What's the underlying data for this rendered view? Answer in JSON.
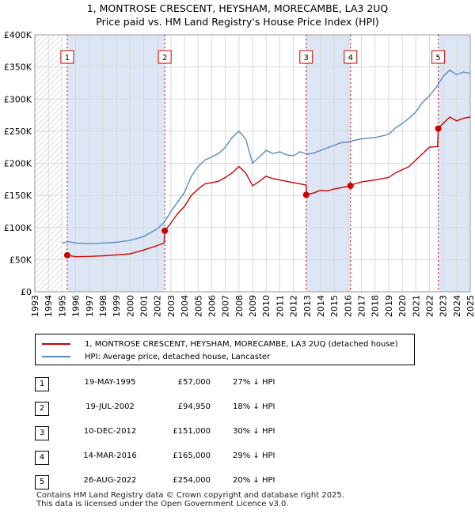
{
  "title_line1": "1, MONTROSE CRESCENT, HEYSHAM, MORECAMBE, LA3 2UQ",
  "title_line2": "Price paid vs. HM Land Registry's House Price Index (HPI)",
  "legend": {
    "property_label": "1, MONTROSE CRESCENT, HEYSHAM, MORECAMBE, LA3 2UQ (detached house)",
    "hpi_label": "HPI: Average price, detached house, Lancaster"
  },
  "colors": {
    "property": "#cc0000",
    "hpi": "#5a8ac6",
    "shade": "#dde6f5",
    "grid": "#d8d8d8"
  },
  "sales": [
    {
      "num": "1",
      "date": "19-MAY-1995",
      "price": "£57,000",
      "hpi": "27% ↓ HPI"
    },
    {
      "num": "2",
      "date": "19-JUL-2002",
      "price": "£94,950",
      "hpi": "18% ↓ HPI"
    },
    {
      "num": "3",
      "date": "10-DEC-2012",
      "price": "£151,000",
      "hpi": "30% ↓ HPI"
    },
    {
      "num": "4",
      "date": "14-MAR-2016",
      "price": "£165,000",
      "hpi": "29% ↓ HPI"
    },
    {
      "num": "5",
      "date": "26-AUG-2022",
      "price": "£254,000",
      "hpi": "20% ↓ HPI"
    }
  ],
  "footer": {
    "line1": "Contains HM Land Registry data © Crown copyright and database right 2025.",
    "line2": "This data is licensed under the Open Government Licence v3.0."
  },
  "chart_data": {
    "type": "line",
    "xlim": [
      1993,
      2025
    ],
    "ylim": [
      0,
      400000
    ],
    "y_ticks": [
      {
        "value": 0,
        "label": "£0"
      },
      {
        "value": 50000,
        "label": "£50K"
      },
      {
        "value": 100000,
        "label": "£100K"
      },
      {
        "value": 150000,
        "label": "£150K"
      },
      {
        "value": 200000,
        "label": "£200K"
      },
      {
        "value": 250000,
        "label": "£250K"
      },
      {
        "value": 300000,
        "label": "£300K"
      },
      {
        "value": 350000,
        "label": "£350K"
      },
      {
        "value": 400000,
        "label": "£400K"
      }
    ],
    "x_ticks": [
      "1993",
      "1994",
      "1995",
      "1996",
      "1997",
      "1998",
      "1999",
      "2000",
      "2001",
      "2002",
      "2003",
      "2004",
      "2005",
      "2006",
      "2007",
      "2008",
      "2009",
      "2010",
      "2011",
      "2012",
      "2013",
      "2014",
      "2015",
      "2016",
      "2017",
      "2018",
      "2019",
      "2020",
      "2021",
      "2022",
      "2023",
      "2024",
      "2025"
    ],
    "grid": true,
    "legend_position": "below",
    "shaded_bands": [
      {
        "from": 1995.38,
        "to": 2002.55
      },
      {
        "from": 2012.94,
        "to": 2016.2
      },
      {
        "from": 2022.65,
        "to": 2025
      }
    ],
    "sale_markers": [
      {
        "label": "1",
        "x": 1995.38,
        "y": 57000
      },
      {
        "label": "2",
        "x": 2002.55,
        "y": 94950
      },
      {
        "label": "3",
        "x": 2012.94,
        "y": 151000
      },
      {
        "label": "4",
        "x": 2016.2,
        "y": 165000
      },
      {
        "label": "5",
        "x": 2022.65,
        "y": 254000
      }
    ],
    "series": [
      {
        "name": "1, MONTROSE CRESCENT, HEYSHAM, MORECAMBE, LA3 2UQ (detached house)",
        "points": [
          [
            1995.38,
            57000
          ],
          [
            1996.0,
            54500
          ],
          [
            1997.0,
            55000
          ],
          [
            1998.0,
            56000
          ],
          [
            1999.0,
            57500
          ],
          [
            2000.0,
            59000
          ],
          [
            2001.0,
            65000
          ],
          [
            2002.0,
            72000
          ],
          [
            2002.5,
            76000
          ],
          [
            2002.55,
            94950
          ],
          [
            2003.0,
            107000
          ],
          [
            2003.5,
            122000
          ],
          [
            2004.0,
            133000
          ],
          [
            2004.5,
            150000
          ],
          [
            2005.0,
            160000
          ],
          [
            2005.5,
            168000
          ],
          [
            2006.0,
            170000
          ],
          [
            2006.5,
            172000
          ],
          [
            2007.0,
            178000
          ],
          [
            2007.5,
            185000
          ],
          [
            2008.0,
            195000
          ],
          [
            2008.5,
            185000
          ],
          [
            2009.0,
            165000
          ],
          [
            2009.5,
            172000
          ],
          [
            2010.0,
            180000
          ],
          [
            2010.5,
            176000
          ],
          [
            2011.0,
            174000
          ],
          [
            2011.5,
            172000
          ],
          [
            2012.0,
            170000
          ],
          [
            2012.5,
            168000
          ],
          [
            2012.94,
            166000
          ],
          [
            2012.95,
            151000
          ],
          [
            2013.5,
            154000
          ],
          [
            2014.0,
            158000
          ],
          [
            2014.5,
            157000
          ],
          [
            2015.0,
            160000
          ],
          [
            2015.5,
            162000
          ],
          [
            2016.2,
            165000
          ],
          [
            2016.5,
            168000
          ],
          [
            2017.0,
            171000
          ],
          [
            2018.0,
            174000
          ],
          [
            2019.0,
            178000
          ],
          [
            2019.5,
            185000
          ],
          [
            2020.0,
            190000
          ],
          [
            2020.5,
            195000
          ],
          [
            2021.0,
            205000
          ],
          [
            2021.5,
            215000
          ],
          [
            2022.0,
            225000
          ],
          [
            2022.6,
            226000
          ],
          [
            2022.65,
            254000
          ],
          [
            2023.0,
            262000
          ],
          [
            2023.5,
            272000
          ],
          [
            2024.0,
            266000
          ],
          [
            2024.5,
            270000
          ],
          [
            2025.0,
            272000
          ]
        ]
      },
      {
        "name": "HPI: Average price, detached house, Lancaster",
        "points": [
          [
            1995.0,
            76000
          ],
          [
            1995.5,
            78000
          ],
          [
            1996.0,
            76000
          ],
          [
            1997.0,
            75000
          ],
          [
            1998.0,
            76000
          ],
          [
            1999.0,
            77000
          ],
          [
            2000.0,
            80000
          ],
          [
            2001.0,
            86000
          ],
          [
            2002.0,
            98000
          ],
          [
            2002.5,
            108000
          ],
          [
            2003.0,
            125000
          ],
          [
            2003.5,
            140000
          ],
          [
            2004.0,
            155000
          ],
          [
            2004.5,
            180000
          ],
          [
            2005.0,
            195000
          ],
          [
            2005.5,
            205000
          ],
          [
            2006.0,
            210000
          ],
          [
            2006.5,
            215000
          ],
          [
            2007.0,
            225000
          ],
          [
            2007.5,
            240000
          ],
          [
            2008.0,
            250000
          ],
          [
            2008.5,
            238000
          ],
          [
            2009.0,
            200000
          ],
          [
            2009.5,
            210000
          ],
          [
            2010.0,
            220000
          ],
          [
            2010.5,
            215000
          ],
          [
            2011.0,
            218000
          ],
          [
            2011.5,
            213000
          ],
          [
            2012.0,
            212000
          ],
          [
            2012.5,
            218000
          ],
          [
            2013.0,
            214000
          ],
          [
            2013.5,
            216000
          ],
          [
            2014.0,
            220000
          ],
          [
            2014.5,
            224000
          ],
          [
            2015.0,
            228000
          ],
          [
            2015.5,
            232000
          ],
          [
            2016.0,
            233000
          ],
          [
            2016.5,
            236000
          ],
          [
            2017.0,
            238000
          ],
          [
            2018.0,
            240000
          ],
          [
            2019.0,
            245000
          ],
          [
            2019.5,
            255000
          ],
          [
            2020.0,
            262000
          ],
          [
            2020.5,
            270000
          ],
          [
            2021.0,
            280000
          ],
          [
            2021.5,
            295000
          ],
          [
            2022.0,
            305000
          ],
          [
            2022.5,
            318000
          ],
          [
            2023.0,
            335000
          ],
          [
            2023.5,
            345000
          ],
          [
            2024.0,
            338000
          ],
          [
            2024.5,
            342000
          ],
          [
            2025.0,
            340000
          ]
        ]
      }
    ]
  }
}
